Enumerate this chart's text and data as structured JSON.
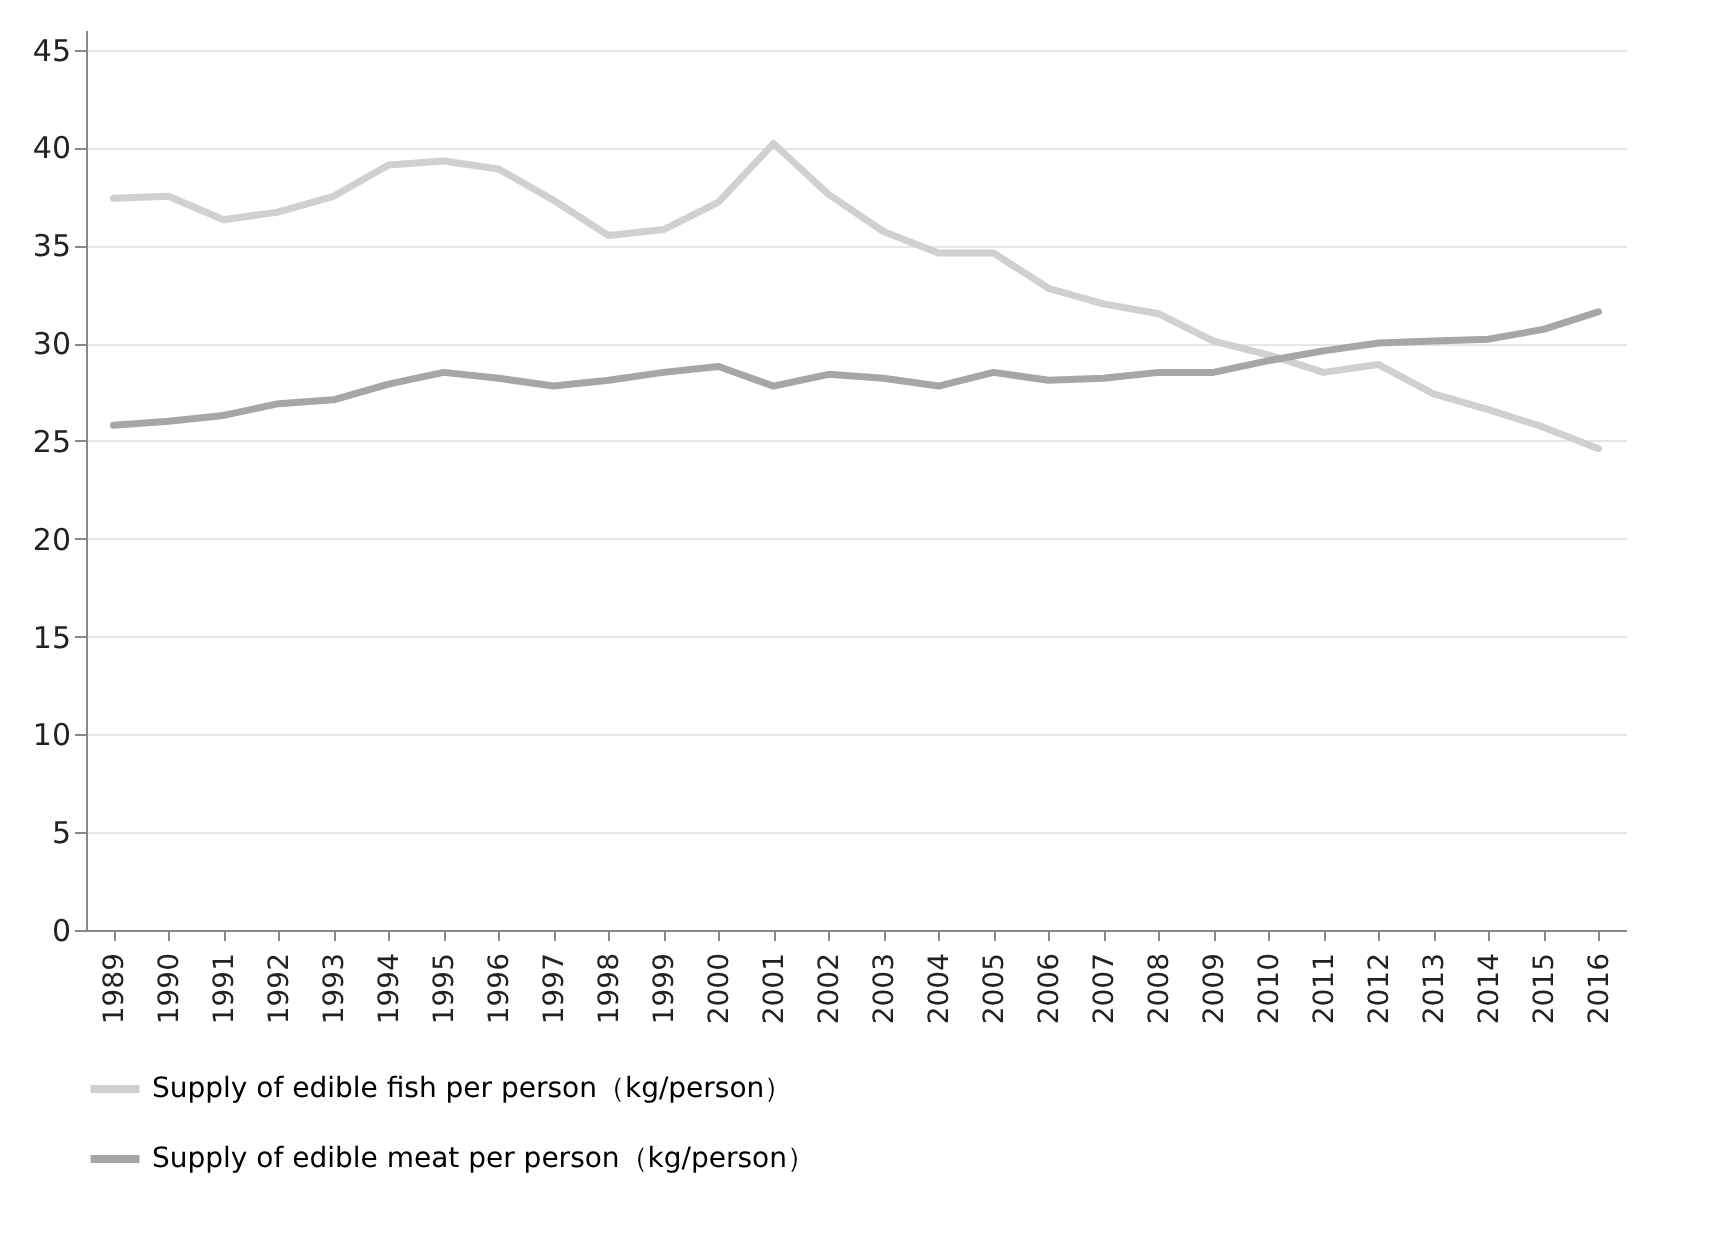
{
  "chart_data": {
    "type": "line",
    "categories": [
      "1989",
      "1990",
      "1991",
      "1992",
      "1993",
      "1994",
      "1995",
      "1996",
      "1997",
      "1998",
      "1999",
      "2000",
      "2001",
      "2002",
      "2003",
      "2004",
      "2005",
      "2006",
      "2007",
      "2008",
      "2009",
      "2010",
      "2011",
      "2012",
      "2013",
      "2014",
      "2015",
      "2016"
    ],
    "series": [
      {
        "name": "Supply of edible fish per person（kg/person）",
        "color": "#d0d0d0",
        "values": [
          37.4,
          37.5,
          36.3,
          36.7,
          37.5,
          39.1,
          39.3,
          38.9,
          37.3,
          35.5,
          35.8,
          37.2,
          40.2,
          37.6,
          35.7,
          34.6,
          34.6,
          32.8,
          32.0,
          31.5,
          30.1,
          29.4,
          28.5,
          28.9,
          27.4,
          26.6,
          25.7,
          24.6
        ]
      },
      {
        "name": "Supply of edible meat per person（kg/person）",
        "color": "#a6a6a8",
        "values": [
          25.8,
          26.0,
          26.3,
          26.9,
          27.1,
          27.9,
          28.5,
          28.2,
          27.8,
          28.1,
          28.5,
          28.8,
          27.8,
          28.4,
          28.2,
          27.8,
          28.5,
          28.1,
          28.2,
          28.5,
          28.5,
          29.1,
          29.6,
          30.0,
          30.1,
          30.2,
          30.7,
          31.6
        ]
      }
    ],
    "ylim": [
      0,
      46
    ],
    "yticks": [
      0,
      5,
      10,
      15,
      20,
      25,
      30,
      35,
      40,
      45
    ],
    "grid": "y",
    "legend": "bottom",
    "marker": "none",
    "line_style": "solid"
  }
}
